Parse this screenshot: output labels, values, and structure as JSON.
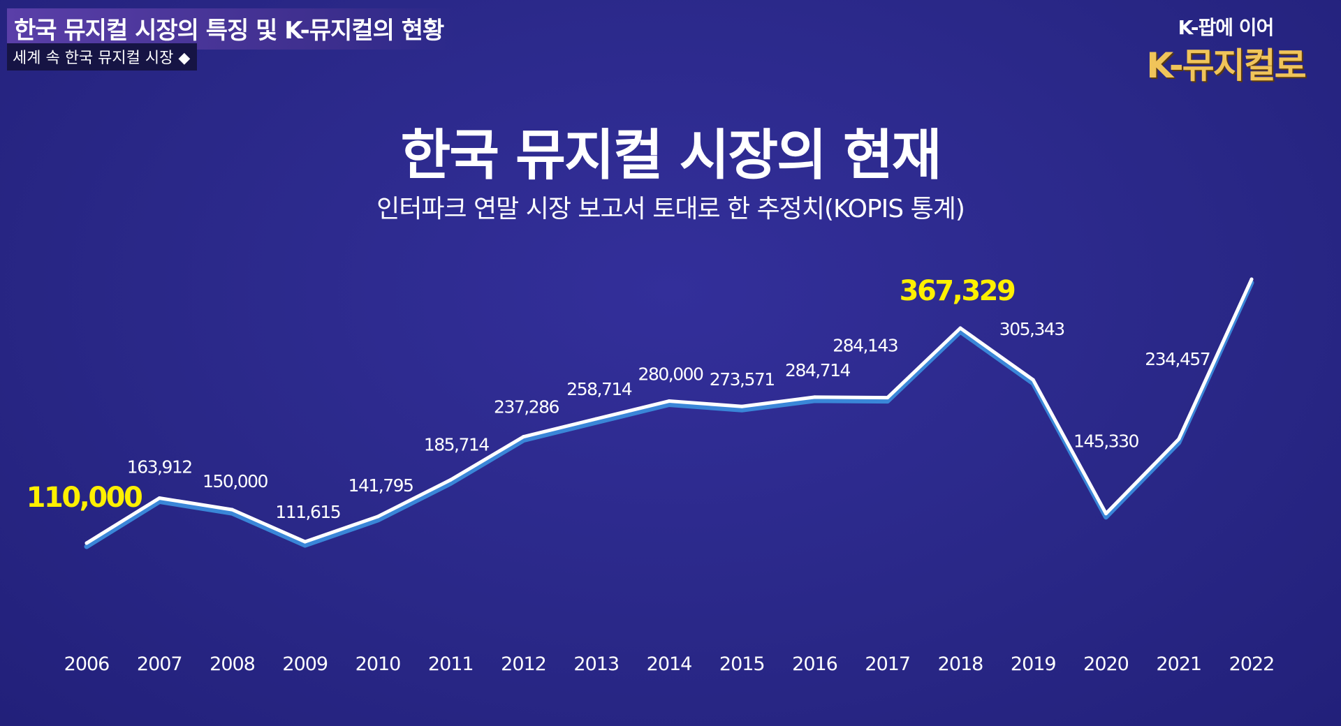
{
  "header": {
    "title": "한국 뮤지컬 시장의 특징 및 K-뮤지컬의 현황",
    "subtitle": "세계 속 한국 뮤지컬 시장 ◆"
  },
  "logo": {
    "line1": "K-팝에 이어",
    "line2": "K-뮤지컬로"
  },
  "colors": {
    "background": "#2b2a8c",
    "line": "#ffffff",
    "line_shadow": "#3a86d8",
    "highlight": "#fff000"
  },
  "chart_data": {
    "type": "line",
    "title": "한국 뮤지컬 시장의 현재",
    "subtitle": "인터파크 연말 시장 보고서 토대로 한 추정치(KOPIS 통계)",
    "categories": [
      "2006",
      "2007",
      "2008",
      "2009",
      "2010",
      "2011",
      "2012",
      "2013",
      "2014",
      "2015",
      "2016",
      "2017",
      "2018",
      "2019",
      "2020",
      "2021",
      "2022"
    ],
    "series": [
      {
        "values": [
          110000,
          163912,
          150000,
          111615,
          141795,
          185714,
          237286,
          258714,
          280000,
          273571,
          284714,
          284143,
          367329,
          305343,
          145330,
          234457,
          null
        ],
        "labels": [
          "110,000",
          "163,912",
          "150,000",
          "111,615",
          "141,795",
          "185,714",
          "237,286",
          "258,714",
          "280,000",
          "273,571",
          "284,714",
          "284,143",
          "367,329",
          "305,343",
          "145,330",
          "234,457",
          ""
        ]
      }
    ],
    "highlighted": [
      "2006",
      "2018"
    ],
    "grid": false,
    "legend": "none"
  }
}
